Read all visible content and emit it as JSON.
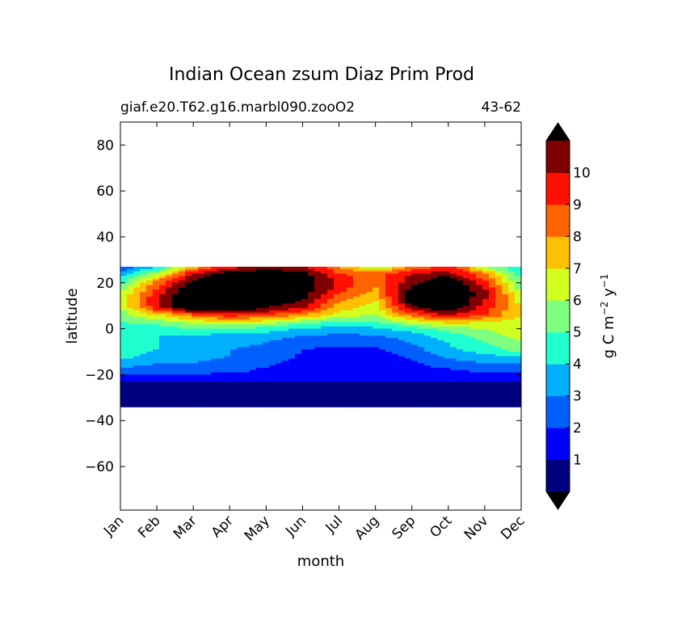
{
  "chart_data": {
    "type": "heatmap",
    "title": "Indian Ocean zsum Diaz Prim Prod",
    "subtitle_left": "giaf.e20.T62.g16.marbl090.zooO2",
    "subtitle_right": "43-62",
    "xlabel": "month",
    "ylabel": "latitude",
    "x_tick_labels": [
      "Jan",
      "Feb",
      "Mar",
      "Apr",
      "May",
      "Jun",
      "Jul",
      "Aug",
      "Sep",
      "Oct",
      "Nov",
      "Dec"
    ],
    "y_ticks": [
      80,
      60,
      40,
      20,
      0,
      -20,
      -40,
      -60
    ],
    "y_tick_labels": [
      "80",
      "60",
      "40",
      "20",
      "0",
      "−20",
      "−40",
      "−60"
    ],
    "ylim": [
      -79,
      90
    ],
    "xlim": [
      1,
      12
    ],
    "data_lat_range": [
      -34,
      27
    ],
    "grid": false,
    "colorbar": {
      "label_main": "g C m",
      "label_exp1": "−2",
      "label_mid": " y",
      "label_exp2": "−1",
      "levels": [
        0,
        1,
        2,
        3,
        4,
        5,
        6,
        7,
        8,
        9,
        10,
        11
      ],
      "tick_values": [
        1,
        2,
        3,
        4,
        5,
        6,
        7,
        8,
        9,
        10
      ],
      "tick_labels": [
        "1",
        "2",
        "3",
        "4",
        "5",
        "6",
        "7",
        "8",
        "9",
        "10"
      ],
      "extend": "both",
      "under_color": "#000000",
      "over_color": "#000000",
      "colors": [
        "#00007f",
        "#0000ff",
        "#0060ff",
        "#00b0ff",
        "#20ffd0",
        "#7fff7f",
        "#d0ff20",
        "#ffc000",
        "#ff6400",
        "#ff1000",
        "#7f0000"
      ]
    },
    "lat": [
      27,
      24,
      21,
      18,
      15,
      12,
      9,
      6,
      3,
      0,
      -3,
      -6,
      -9,
      -12,
      -15,
      -18,
      -21,
      -24,
      -27,
      -30,
      -34
    ],
    "months": [
      1,
      2,
      3,
      4,
      5,
      6,
      7,
      8,
      9,
      10,
      11,
      12
    ],
    "values": [
      [
        2.0,
        4.0,
        7.5,
        9.5,
        10.5,
        10.0,
        8.0,
        5.5,
        8.0,
        9.5,
        6.0,
        4.0
      ],
      [
        3.0,
        6.0,
        10.0,
        11.5,
        12.0,
        11.5,
        9.0,
        8.5,
        10.0,
        10.5,
        8.0,
        4.5
      ],
      [
        4.5,
        8.0,
        11.0,
        12.5,
        12.5,
        12.0,
        9.5,
        8.5,
        10.5,
        12.0,
        9.0,
        5.0
      ],
      [
        5.5,
        9.0,
        12.0,
        12.5,
        12.5,
        12.0,
        9.5,
        8.0,
        11.0,
        12.5,
        10.0,
        5.5
      ],
      [
        6.0,
        9.5,
        12.5,
        12.5,
        12.5,
        11.5,
        9.0,
        7.5,
        12.0,
        12.5,
        10.5,
        6.0
      ],
      [
        6.5,
        10.0,
        12.5,
        12.5,
        12.0,
        11.0,
        8.0,
        7.0,
        12.0,
        12.5,
        10.0,
        6.5
      ],
      [
        6.0,
        9.5,
        12.5,
        12.5,
        11.0,
        10.0,
        7.5,
        6.5,
        10.5,
        12.0,
        9.5,
        7.0
      ],
      [
        5.5,
        7.0,
        8.5,
        9.5,
        9.0,
        8.0,
        6.5,
        6.0,
        8.5,
        10.0,
        9.0,
        7.0
      ],
      [
        5.0,
        5.5,
        6.5,
        7.0,
        6.5,
        5.5,
        5.0,
        5.0,
        6.5,
        7.5,
        7.0,
        6.5
      ],
      [
        4.5,
        4.5,
        5.0,
        5.0,
        4.5,
        4.0,
        3.5,
        3.8,
        4.5,
        5.5,
        6.0,
        6.5
      ],
      [
        4.0,
        4.0,
        4.0,
        3.5,
        3.5,
        3.0,
        2.8,
        2.9,
        3.5,
        4.5,
        5.5,
        6.5
      ],
      [
        4.5,
        4.0,
        3.5,
        3.2,
        3.0,
        2.5,
        2.2,
        2.2,
        3.0,
        4.0,
        5.0,
        6.0
      ],
      [
        5.0,
        4.0,
        3.5,
        3.0,
        2.8,
        2.0,
        1.8,
        1.8,
        2.6,
        3.8,
        4.5,
        5.5
      ],
      [
        4.5,
        3.5,
        3.2,
        3.0,
        2.5,
        1.9,
        1.6,
        1.6,
        2.2,
        3.2,
        3.8,
        4.0
      ],
      [
        3.5,
        3.0,
        3.0,
        2.8,
        2.2,
        1.7,
        1.5,
        1.5,
        1.8,
        2.5,
        3.0,
        3.0
      ],
      [
        2.8,
        2.6,
        2.6,
        2.4,
        1.8,
        1.6,
        1.4,
        1.4,
        1.6,
        1.9,
        2.2,
        2.4
      ],
      [
        1.5,
        1.5,
        1.5,
        1.5,
        1.5,
        1.5,
        1.5,
        1.5,
        1.5,
        1.5,
        1.5,
        1.5
      ],
      [
        0.8,
        0.8,
        0.8,
        0.8,
        0.8,
        0.8,
        0.8,
        0.8,
        0.8,
        0.8,
        0.8,
        0.8
      ],
      [
        0.5,
        0.5,
        0.5,
        0.5,
        0.5,
        0.5,
        0.5,
        0.5,
        0.5,
        0.5,
        0.5,
        0.5
      ],
      [
        0.6,
        0.6,
        0.7,
        0.8,
        0.8,
        0.8,
        0.7,
        0.7,
        0.9,
        1.0,
        1.0,
        0.8
      ],
      [
        0.5,
        0.5,
        0.5,
        0.6,
        0.6,
        0.6,
        0.5,
        0.5,
        0.7,
        0.8,
        0.8,
        0.6
      ]
    ]
  }
}
